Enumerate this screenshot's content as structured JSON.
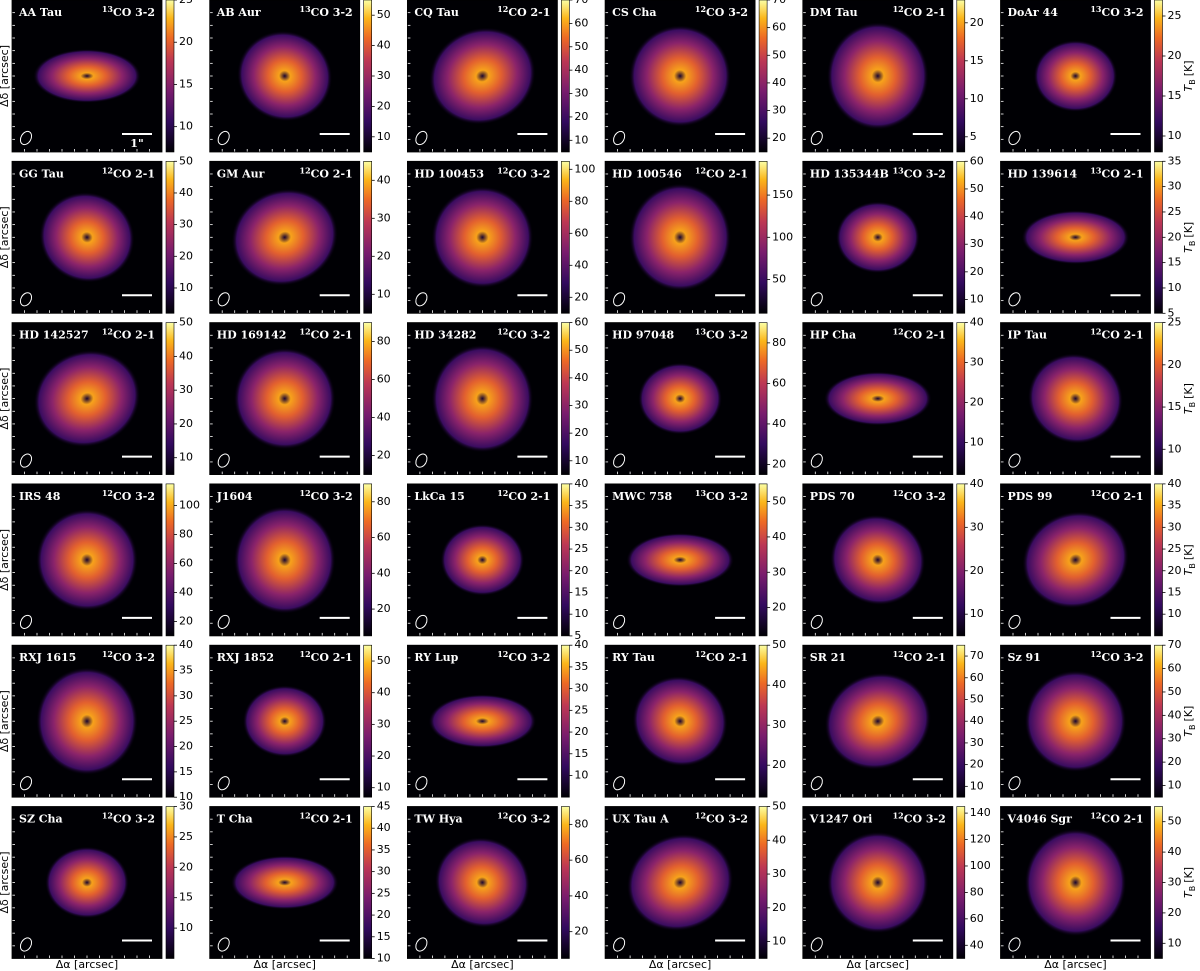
{
  "chart_data": {
    "type": "image-grid",
    "y_label": "Δδ [arcsec]",
    "x_label": "Δα [arcsec]",
    "cbar_label": "T",
    "cbar_label_sub": "B",
    "cbar_label_unit": "[K]",
    "panels": [
      {
        "name": "AA Tau",
        "iso": "13",
        "line": "CO 3-2",
        "clim": [
          7,
          25
        ],
        "cticks": [
          10,
          15,
          20,
          25
        ],
        "scale_label": "1\""
      },
      {
        "name": "AB Aur",
        "iso": "13",
        "line": "CO 3-2",
        "clim": [
          5,
          55
        ],
        "cticks": [
          10,
          20,
          30,
          40,
          50
        ]
      },
      {
        "name": "CQ Tau",
        "iso": "12",
        "line": "CO 2-1",
        "clim": [
          5,
          70
        ],
        "cticks": [
          10,
          20,
          30,
          40,
          50,
          60,
          70
        ]
      },
      {
        "name": "CS Cha",
        "iso": "12",
        "line": "CO 3-2",
        "clim": [
          15,
          70
        ],
        "cticks": [
          20,
          30,
          40,
          50,
          60,
          70
        ]
      },
      {
        "name": "DM Tau",
        "iso": "12",
        "line": "CO 2-1",
        "clim": [
          3,
          23
        ],
        "cticks": [
          5,
          10,
          15,
          20
        ]
      },
      {
        "name": "DoAr 44",
        "iso": "13",
        "line": "CO 3-2",
        "clim": [
          8,
          27
        ],
        "cticks": [
          10,
          15,
          20,
          25
        ]
      },
      {
        "name": "GG Tau",
        "iso": "12",
        "line": "CO 2-1",
        "clim": [
          2,
          50
        ],
        "cticks": [
          10,
          20,
          30,
          40,
          50
        ]
      },
      {
        "name": "GM Aur",
        "iso": "12",
        "line": "CO 2-1",
        "clim": [
          5,
          45
        ],
        "cticks": [
          10,
          20,
          30,
          40
        ]
      },
      {
        "name": "HD 100453",
        "iso": "12",
        "line": "CO 3-2",
        "clim": [
          10,
          105
        ],
        "cticks": [
          20,
          40,
          60,
          80,
          100
        ]
      },
      {
        "name": "HD 100546",
        "iso": "12",
        "line": "CO 2-1",
        "clim": [
          10,
          190
        ],
        "cticks": [
          50,
          100,
          150
        ]
      },
      {
        "name": "HD 135344B",
        "iso": "13",
        "line": "CO 3-2",
        "clim": [
          5,
          60
        ],
        "cticks": [
          10,
          20,
          30,
          40,
          50,
          60
        ]
      },
      {
        "name": "HD 139614",
        "iso": "13",
        "line": "CO 2-1",
        "clim": [
          5,
          35
        ],
        "cticks": [
          5,
          10,
          15,
          20,
          25,
          30,
          35
        ]
      },
      {
        "name": "HD 142527",
        "iso": "12",
        "line": "CO 2-1",
        "clim": [
          5,
          50
        ],
        "cticks": [
          10,
          20,
          30,
          40,
          50
        ]
      },
      {
        "name": "HD 169142",
        "iso": "12",
        "line": "CO 2-1",
        "clim": [
          10,
          90
        ],
        "cticks": [
          20,
          40,
          60,
          80
        ]
      },
      {
        "name": "HD 34282",
        "iso": "12",
        "line": "CO 3-2",
        "clim": [
          5,
          60
        ],
        "cticks": [
          10,
          20,
          30,
          40,
          50,
          60
        ]
      },
      {
        "name": "HD 97048",
        "iso": "13",
        "line": "CO 3-2",
        "clim": [
          15,
          90
        ],
        "cticks": [
          20,
          40,
          60,
          80
        ]
      },
      {
        "name": "HP Cha",
        "iso": "12",
        "line": "CO 2-1",
        "clim": [
          2,
          40
        ],
        "cticks": [
          10,
          20,
          30,
          40
        ]
      },
      {
        "name": "IP Tau",
        "iso": "12",
        "line": "CO 2-1",
        "clim": [
          7,
          25
        ],
        "cticks": [
          10,
          15,
          20,
          25
        ]
      },
      {
        "name": "IRS 48",
        "iso": "12",
        "line": "CO 3-2",
        "clim": [
          10,
          115
        ],
        "cticks": [
          20,
          40,
          60,
          80,
          100
        ]
      },
      {
        "name": "J1604",
        "iso": "12",
        "line": "CO 3-2",
        "clim": [
          5,
          90
        ],
        "cticks": [
          20,
          40,
          60,
          80
        ]
      },
      {
        "name": "LkCa 15",
        "iso": "12",
        "line": "CO 2-1",
        "clim": [
          5,
          40
        ],
        "cticks": [
          5,
          10,
          15,
          20,
          25,
          30,
          35,
          40
        ]
      },
      {
        "name": "MWC 758",
        "iso": "13",
        "line": "CO 3-2",
        "clim": [
          12,
          55
        ],
        "cticks": [
          20,
          30,
          40,
          50
        ]
      },
      {
        "name": "PDS 70",
        "iso": "12",
        "line": "CO 3-2",
        "clim": [
          5,
          40
        ],
        "cticks": [
          10,
          20,
          30,
          40
        ]
      },
      {
        "name": "PDS 99",
        "iso": "12",
        "line": "CO 2-1",
        "clim": [
          5,
          40
        ],
        "cticks": [
          10,
          15,
          20,
          25,
          30,
          35,
          40
        ]
      },
      {
        "name": "RXJ 1615",
        "iso": "12",
        "line": "CO 3-2",
        "clim": [
          10,
          40
        ],
        "cticks": [
          10,
          15,
          20,
          25,
          30,
          35,
          40
        ]
      },
      {
        "name": "RXJ 1852",
        "iso": "12",
        "line": "CO 2-1",
        "clim": [
          7,
          55
        ],
        "cticks": [
          10,
          20,
          30,
          40,
          50
        ]
      },
      {
        "name": "RY Lup",
        "iso": "12",
        "line": "CO 3-2",
        "clim": [
          5,
          40
        ],
        "cticks": [
          10,
          15,
          20,
          25,
          30,
          35,
          40
        ]
      },
      {
        "name": "RY Tau",
        "iso": "12",
        "line": "CO 2-1",
        "clim": [
          12,
          50
        ],
        "cticks": [
          20,
          30,
          40,
          50
        ]
      },
      {
        "name": "SR 21",
        "iso": "12",
        "line": "CO 2-1",
        "clim": [
          5,
          75
        ],
        "cticks": [
          10,
          20,
          30,
          40,
          50,
          60,
          70
        ]
      },
      {
        "name": "Sz 91",
        "iso": "12",
        "line": "CO 3-2",
        "clim": [
          5,
          70
        ],
        "cticks": [
          10,
          20,
          30,
          40,
          50,
          60,
          70
        ]
      },
      {
        "name": "SZ Cha",
        "iso": "12",
        "line": "CO 3-2",
        "clim": [
          5,
          30
        ],
        "cticks": [
          10,
          15,
          20,
          25,
          30
        ]
      },
      {
        "name": "T Cha",
        "iso": "12",
        "line": "CO 2-1",
        "clim": [
          10,
          45
        ],
        "cticks": [
          10,
          15,
          20,
          25,
          30,
          35,
          40,
          45
        ]
      },
      {
        "name": "TW Hya",
        "iso": "12",
        "line": "CO 3-2",
        "clim": [
          5,
          90
        ],
        "cticks": [
          20,
          40,
          60,
          80
        ]
      },
      {
        "name": "UX Tau A",
        "iso": "12",
        "line": "CO 3-2",
        "clim": [
          5,
          50
        ],
        "cticks": [
          10,
          20,
          30,
          40,
          50
        ]
      },
      {
        "name": "V1247 Ori",
        "iso": "12",
        "line": "CO 3-2",
        "clim": [
          30,
          145
        ],
        "cticks": [
          40,
          60,
          80,
          100,
          120,
          140
        ]
      },
      {
        "name": "V4046 Sgr",
        "iso": "12",
        "line": "CO 2-1",
        "clim": [
          5,
          55
        ],
        "cticks": [
          10,
          20,
          30,
          40,
          50
        ]
      }
    ]
  }
}
